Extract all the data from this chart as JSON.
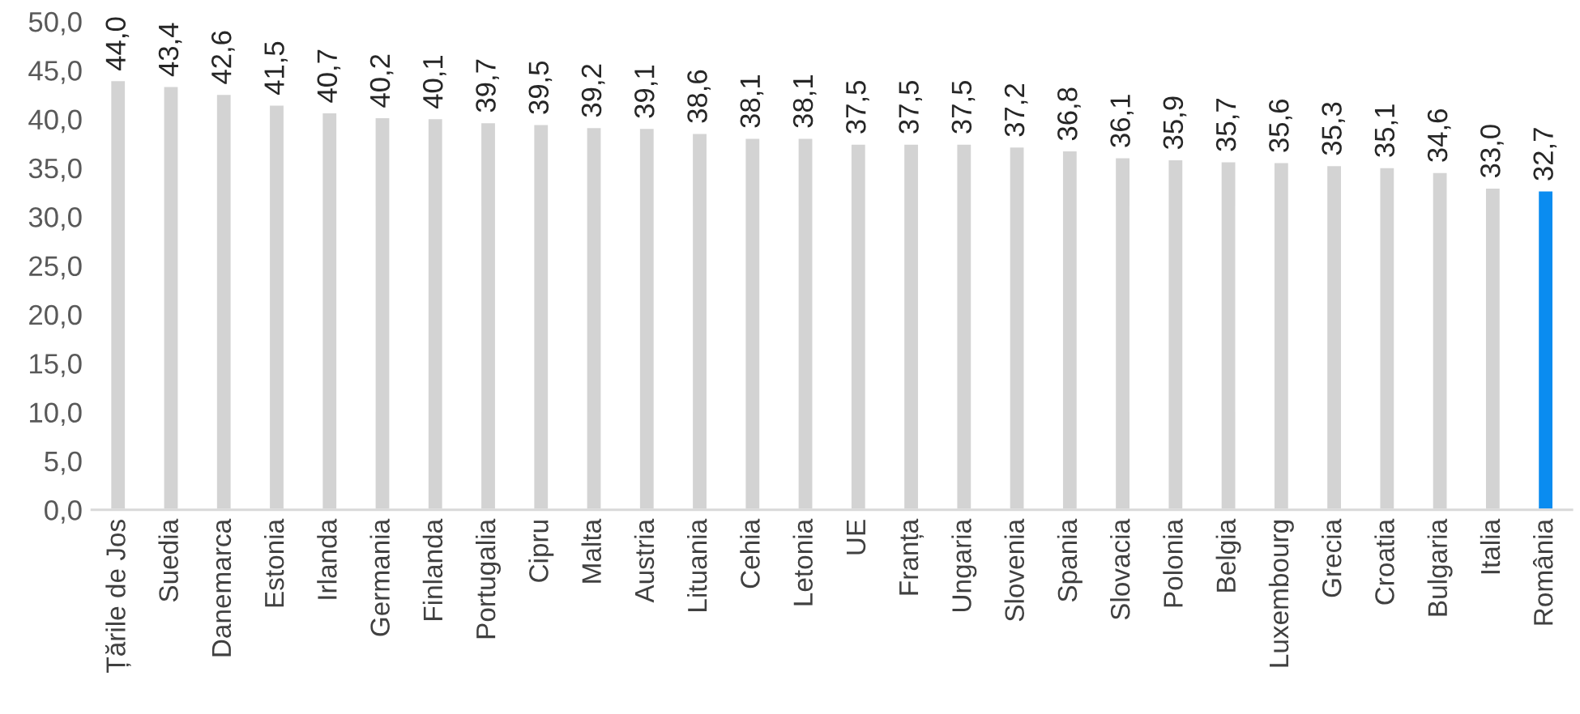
{
  "chart_data": {
    "type": "bar",
    "categories": [
      "Țările de Jos",
      "Suedia",
      "Danemarca",
      "Estonia",
      "Irlanda",
      "Germania",
      "Finlanda",
      "Portugalia",
      "Cipru",
      "Malta",
      "Austria",
      "Lituania",
      "Cehia",
      "Letonia",
      "UE",
      "Franța",
      "Ungaria",
      "Slovenia",
      "Spania",
      "Slovacia",
      "Polonia",
      "Belgia",
      "Luxembourg",
      "Grecia",
      "Croatia",
      "Bulgaria",
      "Italia",
      "România"
    ],
    "values": [
      44.0,
      43.4,
      42.6,
      41.5,
      40.7,
      40.2,
      40.1,
      39.7,
      39.5,
      39.2,
      39.1,
      38.6,
      38.1,
      38.1,
      37.5,
      37.5,
      37.5,
      37.2,
      36.8,
      36.1,
      35.9,
      35.7,
      35.6,
      35.3,
      35.1,
      34.6,
      33.0,
      32.7
    ],
    "value_labels": [
      "44,0",
      "43,4",
      "42,6",
      "41,5",
      "40,7",
      "40,2",
      "40,1",
      "39,7",
      "39,5",
      "39,2",
      "39,1",
      "38,6",
      "38,1",
      "38,1",
      "37,5",
      "37,5",
      "37,5",
      "37,2",
      "36,8",
      "36,1",
      "35,9",
      "35,7",
      "35,6",
      "35,3",
      "35,1",
      "34,6",
      "33,0",
      "32,7"
    ],
    "colors": [
      "#d3d3d3",
      "#d3d3d3",
      "#d3d3d3",
      "#d3d3d3",
      "#d3d3d3",
      "#d3d3d3",
      "#d3d3d3",
      "#d3d3d3",
      "#d3d3d3",
      "#d3d3d3",
      "#d3d3d3",
      "#d3d3d3",
      "#d3d3d3",
      "#d3d3d3",
      "#d3d3d3",
      "#d3d3d3",
      "#d3d3d3",
      "#d3d3d3",
      "#d3d3d3",
      "#d3d3d3",
      "#d3d3d3",
      "#d3d3d3",
      "#d3d3d3",
      "#d3d3d3",
      "#d3d3d3",
      "#d3d3d3",
      "#d3d3d3",
      "#0a8cf0"
    ],
    "ylim": [
      0,
      50
    ],
    "yticks": [
      {
        "value": 0,
        "label": "0,0"
      },
      {
        "value": 5,
        "label": "5,0"
      },
      {
        "value": 10,
        "label": "10,0"
      },
      {
        "value": 15,
        "label": "15,0"
      },
      {
        "value": 20,
        "label": "20,0"
      },
      {
        "value": 25,
        "label": "25,0"
      },
      {
        "value": 30,
        "label": "30,0"
      },
      {
        "value": 35,
        "label": "35,0"
      },
      {
        "value": 40,
        "label": "40,0"
      },
      {
        "value": 45,
        "label": "45,0"
      },
      {
        "value": 50,
        "label": "50,0"
      }
    ]
  }
}
